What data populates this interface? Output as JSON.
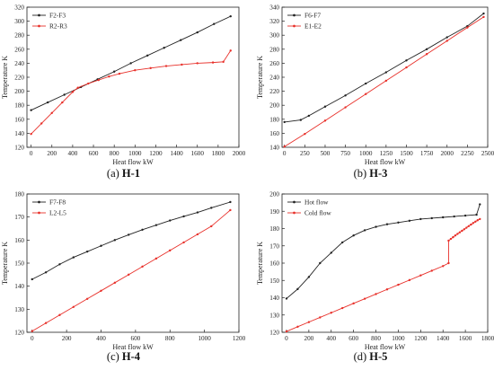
{
  "chart_data": [
    {
      "type": "line",
      "caption_prefix": "(a) ",
      "caption_bold": "H-1",
      "xlabel": "Heat flow kW",
      "ylabel": "Temperature K",
      "xlim": [
        -40,
        2000
      ],
      "ylim": [
        120,
        320
      ],
      "xticks": [
        0,
        200,
        400,
        600,
        800,
        1000,
        1200,
        1400,
        1600,
        1800,
        2000
      ],
      "yticks": [
        120,
        140,
        160,
        180,
        200,
        220,
        240,
        260,
        280,
        300,
        320
      ],
      "legend_position": "top-left",
      "series": [
        {
          "name": "F2-F3",
          "color": "#222222",
          "marker": "dot",
          "x": [
            0,
            160,
            320,
            480,
            640,
            800,
            960,
            1120,
            1280,
            1440,
            1600,
            1760,
            1920
          ],
          "y": [
            173,
            184,
            195,
            206,
            217,
            228,
            240,
            251,
            262,
            273,
            284,
            296,
            307
          ]
        },
        {
          "name": "R2-R3",
          "color": "#e8302a",
          "marker": "dot",
          "x": [
            0,
            100,
            200,
            300,
            400,
            450,
            550,
            650,
            750,
            850,
            1000,
            1150,
            1300,
            1450,
            1600,
            1750,
            1850,
            1920
          ],
          "y": [
            139,
            154,
            169,
            184,
            199,
            205,
            211,
            216,
            221,
            225,
            230,
            233,
            236,
            238,
            240,
            241,
            242,
            258
          ]
        }
      ]
    },
    {
      "type": "line",
      "caption_prefix": "(b) ",
      "caption_bold": "H-3",
      "xlabel": "Heat flow kW",
      "ylabel": "Temperature K",
      "xlim": [
        -30,
        2500
      ],
      "ylim": [
        140,
        340
      ],
      "xticks": [
        0,
        250,
        500,
        750,
        1000,
        1250,
        1500,
        1750,
        2000,
        2250,
        2500
      ],
      "yticks": [
        140,
        160,
        180,
        200,
        220,
        240,
        260,
        280,
        300,
        320,
        340
      ],
      "legend_position": "top-left",
      "series": [
        {
          "name": "F6-F7",
          "color": "#222222",
          "marker": "dot",
          "x": [
            0,
            200,
            300,
            500,
            750,
            1000,
            1250,
            1500,
            1750,
            2000,
            2250,
            2450
          ],
          "y": [
            176,
            179,
            185,
            198,
            214,
            231,
            247,
            264,
            280,
            297,
            313,
            331
          ]
        },
        {
          "name": "E1-E2",
          "color": "#e8302a",
          "marker": "dot",
          "x": [
            0,
            250,
            500,
            750,
            1000,
            1250,
            1500,
            1750,
            2000,
            2250,
            2450
          ],
          "y": [
            141,
            159,
            178,
            197,
            216,
            235,
            254,
            273,
            292,
            311,
            326
          ]
        }
      ]
    },
    {
      "type": "line",
      "caption_prefix": "(c) ",
      "caption_bold": "H-4",
      "xlabel": "Heat flow kW",
      "ylabel": "Temperature K",
      "xlim": [
        -30,
        1200
      ],
      "ylim": [
        120,
        180
      ],
      "xticks": [
        0,
        200,
        400,
        600,
        800,
        1000,
        1200
      ],
      "yticks": [
        120,
        130,
        140,
        150,
        160,
        170,
        180
      ],
      "legend_position": "top-left",
      "series": [
        {
          "name": "F7-F8",
          "color": "#222222",
          "marker": "dot",
          "x": [
            0,
            80,
            160,
            240,
            320,
            400,
            480,
            560,
            640,
            720,
            800,
            880,
            960,
            1040,
            1150
          ],
          "y": [
            143,
            146,
            149.5,
            152.5,
            155,
            157.5,
            160,
            162.3,
            164.5,
            166.5,
            168.5,
            170.3,
            172,
            174,
            176.5
          ]
        },
        {
          "name": "L2-L5",
          "color": "#e8302a",
          "marker": "dot",
          "x": [
            0,
            80,
            160,
            240,
            320,
            400,
            480,
            560,
            640,
            720,
            800,
            880,
            960,
            1040,
            1150
          ],
          "y": [
            120.5,
            124,
            127.5,
            131,
            134.5,
            138,
            141.5,
            145,
            148.5,
            152,
            155.5,
            159,
            162.5,
            166,
            173
          ]
        }
      ]
    },
    {
      "type": "line",
      "caption_prefix": "(d) ",
      "caption_bold": "H-5",
      "xlabel": "Heat flow kW",
      "ylabel": "Temperature K",
      "xlim": [
        -40,
        1800
      ],
      "ylim": [
        120,
        200
      ],
      "xticks": [
        0,
        200,
        400,
        600,
        800,
        1000,
        1200,
        1400,
        1600,
        1800
      ],
      "yticks": [
        120,
        130,
        140,
        150,
        160,
        170,
        180,
        190,
        200
      ],
      "legend_position": "top-left",
      "series": [
        {
          "name": "Hot flow",
          "color": "#222222",
          "marker": "dot",
          "x": [
            0,
            100,
            200,
            300,
            400,
            500,
            600,
            700,
            800,
            900,
            1000,
            1100,
            1200,
            1300,
            1400,
            1500,
            1600,
            1700,
            1730
          ],
          "y": [
            139.5,
            145,
            152,
            160,
            166,
            172,
            176,
            179,
            181,
            182.5,
            183.5,
            184.5,
            185.5,
            186,
            186.5,
            187,
            187.5,
            188,
            194
          ]
        },
        {
          "name": "Cold flow",
          "color": "#e8302a",
          "marker": "dot",
          "x": [
            0,
            100,
            200,
            300,
            400,
            500,
            600,
            700,
            800,
            900,
            1000,
            1100,
            1200,
            1300,
            1400,
            1450,
            1450,
            1470,
            1490,
            1510,
            1530,
            1550,
            1570,
            1590,
            1610,
            1630,
            1650,
            1670,
            1690,
            1710,
            1730
          ],
          "y": [
            120.5,
            123.2,
            125.9,
            128.6,
            131.3,
            134,
            136.7,
            139.4,
            142.1,
            144.8,
            147.5,
            150.2,
            152.9,
            155.6,
            158.3,
            160,
            173,
            174,
            175,
            176,
            176.9,
            177.8,
            178.7,
            179.6,
            180.5,
            181.4,
            182.3,
            183.2,
            184,
            184.8,
            185.5
          ]
        }
      ]
    }
  ]
}
